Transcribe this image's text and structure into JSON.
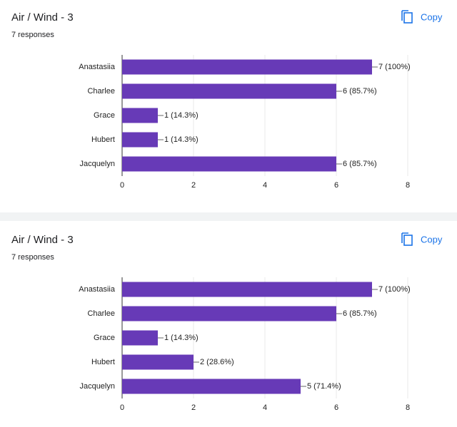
{
  "cards": [
    {
      "button": "Copy"
    },
    {
      "button": "Copy"
    }
  ],
  "chart_data": [
    {
      "type": "bar",
      "orientation": "horizontal",
      "title": "Air / Wind - 3",
      "subtitle": "7 responses",
      "categories": [
        "Anastasiia",
        "Charlee",
        "Grace",
        "Hubert",
        "Jacquelyn"
      ],
      "values": [
        7,
        6,
        1,
        1,
        6
      ],
      "value_labels": [
        "7 (100%)",
        "6 (85.7%)",
        "1 (14.3%)",
        "1 (14.3%)",
        "6 (85.7%)"
      ],
      "color": "#673ab7",
      "xlim": [
        0,
        8
      ],
      "xticks": [
        0,
        2,
        4,
        6,
        8
      ],
      "grid": true
    },
    {
      "type": "bar",
      "orientation": "horizontal",
      "title": "Air / Wind - 3",
      "subtitle": "7 responses",
      "categories": [
        "Anastasiia",
        "Charlee",
        "Grace",
        "Hubert",
        "Jacquelyn"
      ],
      "values": [
        7,
        6,
        1,
        2,
        5
      ],
      "value_labels": [
        "7 (100%)",
        "6 (85.7%)",
        "1 (14.3%)",
        "2 (28.6%)",
        "5 (71.4%)"
      ],
      "color": "#673ab7",
      "xlim": [
        0,
        8
      ],
      "xticks": [
        0,
        2,
        4,
        6,
        8
      ],
      "grid": true
    }
  ]
}
